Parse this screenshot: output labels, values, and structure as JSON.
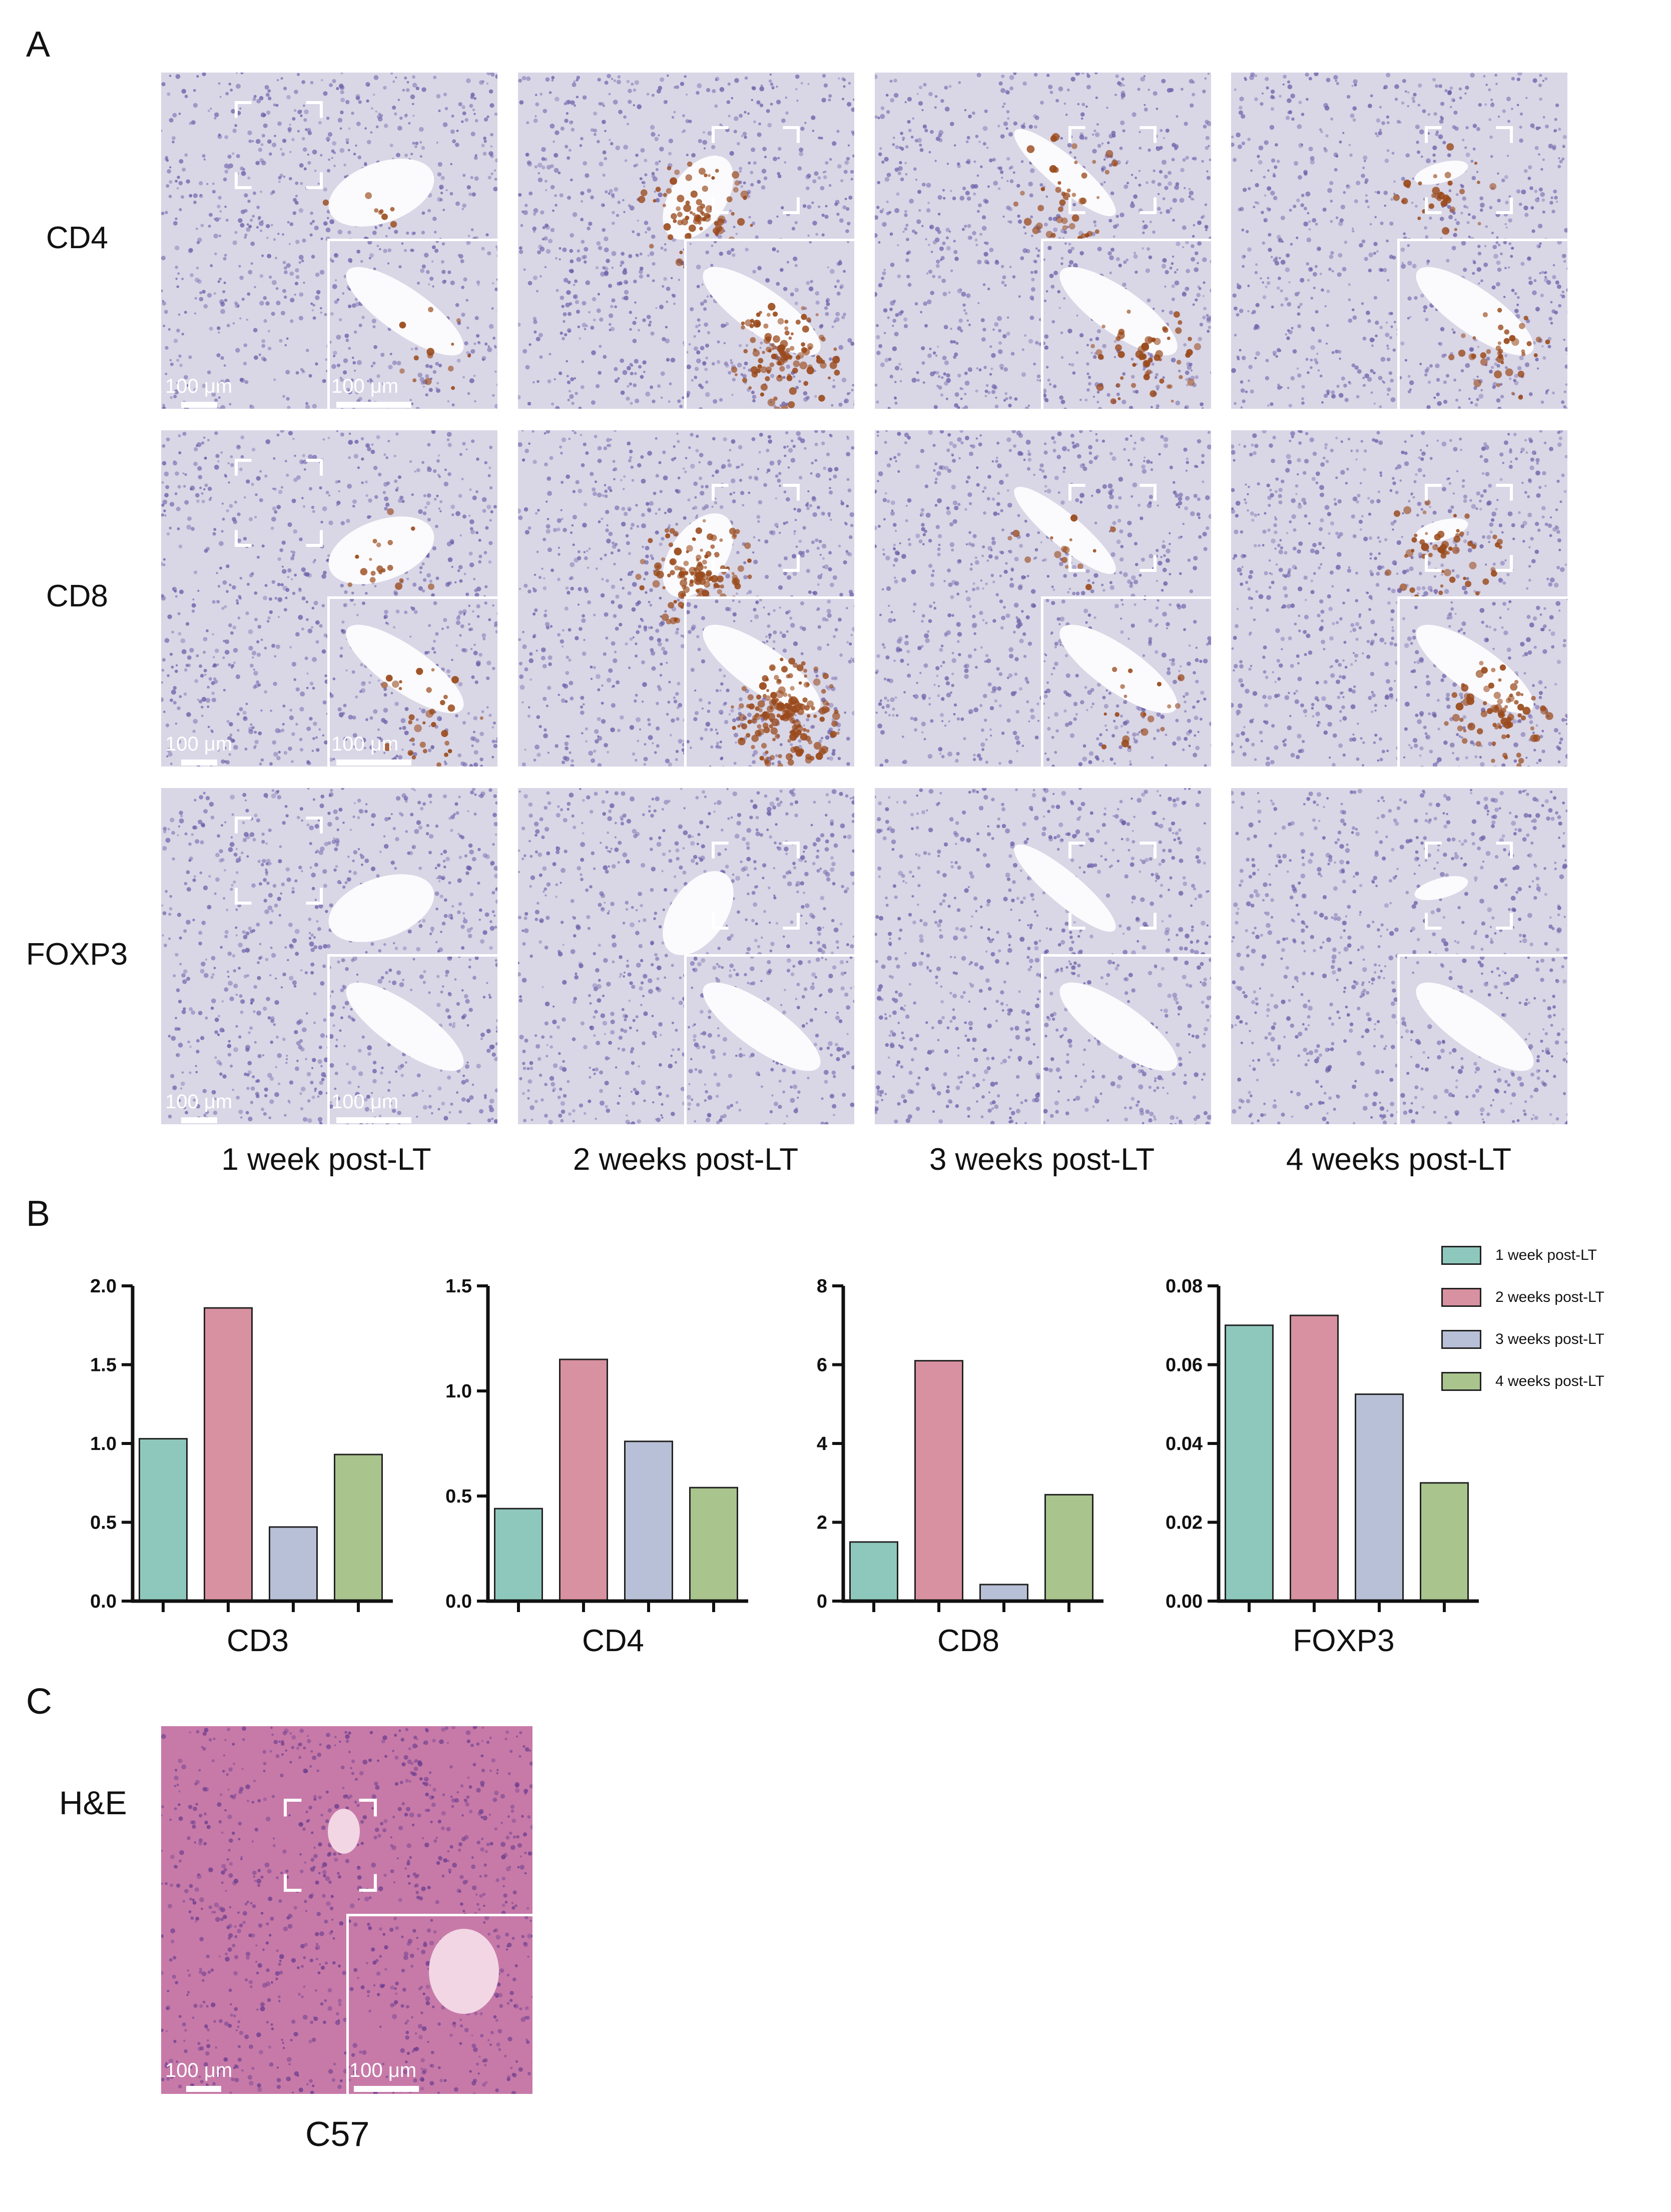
{
  "panels": {
    "a": "A",
    "b": "B",
    "c": "C"
  },
  "ihc": {
    "rows": [
      "CD4",
      "CD8",
      "FOXP3"
    ],
    "columns": [
      "1 week post-LT",
      "2 weeks post-LT",
      "3 weeks post-LT",
      "4 weeks post-LT"
    ],
    "scale_bar": "100 μm",
    "stain_colors": {
      "hematoxylin_bg": "#d9d6e6",
      "nuclei": "#6a5fa8",
      "dab": "#9a4a1c"
    }
  },
  "chart_data": [
    {
      "type": "bar",
      "xlabel": "CD3",
      "categories": [
        "1 week post-LT",
        "2 weeks post-LT",
        "3 weeks post-LT",
        "4 weeks post-LT"
      ],
      "values": [
        1.03,
        1.86,
        0.47,
        0.93
      ],
      "ylim": [
        0,
        2.0
      ],
      "yticks": [
        "0.0",
        "0.5",
        "1.0",
        "1.5",
        "2.0"
      ]
    },
    {
      "type": "bar",
      "xlabel": "CD4",
      "categories": [
        "1 week post-LT",
        "2 weeks post-LT",
        "3 weeks post-LT",
        "4 weeks post-LT"
      ],
      "values": [
        0.44,
        1.15,
        0.76,
        0.54
      ],
      "ylim": [
        0,
        1.5
      ],
      "yticks": [
        "0.0",
        "0.5",
        "1.0",
        "1.5"
      ]
    },
    {
      "type": "bar",
      "xlabel": "CD8",
      "categories": [
        "1 week post-LT",
        "2 weeks post-LT",
        "3 weeks post-LT",
        "4 weeks post-LT"
      ],
      "values": [
        1.5,
        6.1,
        0.42,
        2.7
      ],
      "ylim": [
        0,
        8
      ],
      "yticks": [
        "0",
        "2",
        "4",
        "6",
        "8"
      ]
    },
    {
      "type": "bar",
      "xlabel": "FOXP3",
      "categories": [
        "1 week post-LT",
        "2 weeks post-LT",
        "3 weeks post-LT",
        "4 weeks post-LT"
      ],
      "values": [
        0.07,
        0.0725,
        0.0525,
        0.03
      ],
      "ylim": [
        0,
        0.08
      ],
      "yticks": [
        "0.00",
        "0.02",
        "0.04",
        "0.06",
        "0.08"
      ]
    }
  ],
  "legend": [
    {
      "label": "1 week post-LT",
      "color": "#8ec8bd"
    },
    {
      "label": "2 weeks post-LT",
      "color": "#d891a0"
    },
    {
      "label": "3 weeks post-LT",
      "color": "#b7c0d6"
    },
    {
      "label": "4 weeks post-LT",
      "color": "#a9c48d"
    }
  ],
  "he": {
    "row_label": "H&E",
    "caption": "C57",
    "scale_bar": "100 μm",
    "colors": {
      "bg": "#c77aa8",
      "nuclei": "#6a3c8e",
      "vessel": "#f2d6e4"
    }
  }
}
